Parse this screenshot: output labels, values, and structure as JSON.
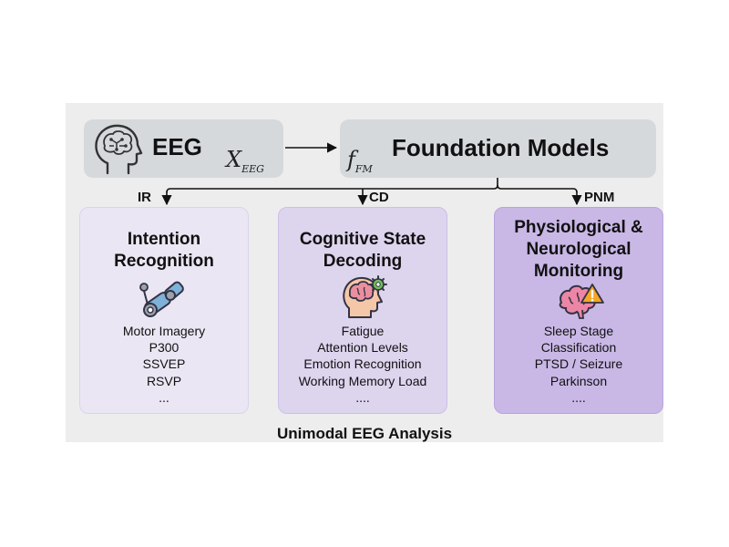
{
  "input": {
    "title": "EEG",
    "symbol": "X",
    "symbol_sub": "EEG",
    "icon": "brain-head-icon"
  },
  "model": {
    "title": "Foundation Models",
    "symbol": "f",
    "symbol_sub": "FM"
  },
  "branches": [
    {
      "abbr": "IR",
      "title_lines": [
        "Intention",
        "Recognition"
      ],
      "icon": "robotic-arm-icon",
      "items": [
        "Motor Imagery",
        "P300",
        "SSVEP",
        "RSVP",
        "..."
      ]
    },
    {
      "abbr": "CD",
      "title_lines": [
        "Cognitive State",
        "Decoding"
      ],
      "icon": "head-brain-gear-icon",
      "items": [
        "Fatigue",
        "Attention Levels",
        "Emotion Recognition",
        "Working Memory Load",
        "...."
      ]
    },
    {
      "abbr": "PNM",
      "title_lines": [
        "Physiological &",
        "Neurological",
        "Monitoring"
      ],
      "icon": "brain-warning-icon",
      "items": [
        "Sleep Stage",
        "Classification",
        "PTSD / Seizure",
        "Parkinson",
        "...."
      ]
    }
  ],
  "footer": "Unimodal EEG Analysis",
  "colors": {
    "ir_card": "#ebe6f3",
    "cd_card": "#ddd4ee",
    "pnm_card": "#c9b8e6",
    "header_box": "#d6d9dc"
  }
}
